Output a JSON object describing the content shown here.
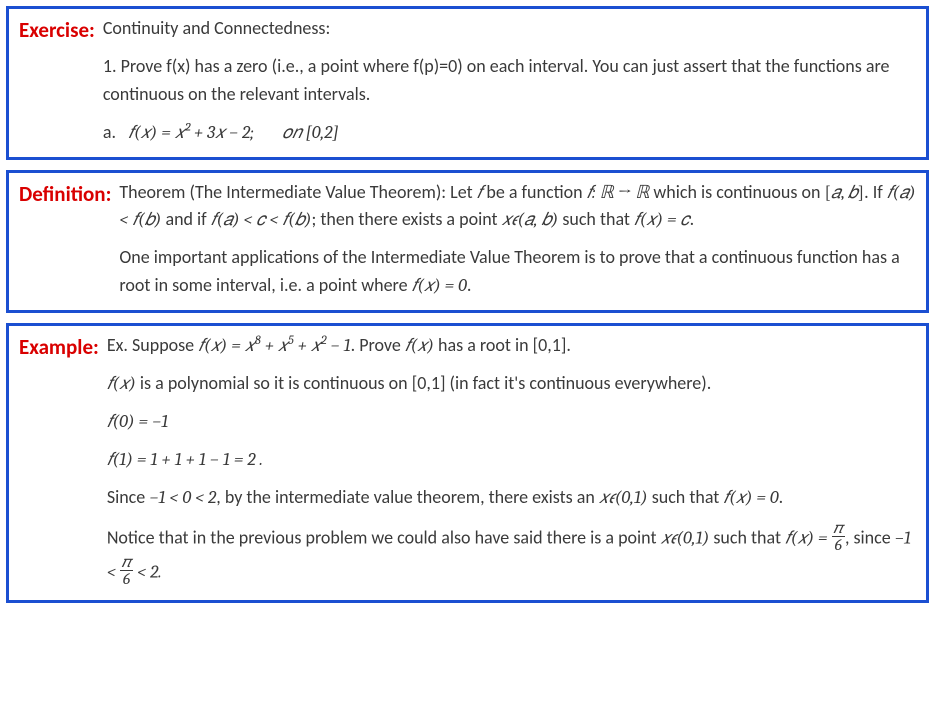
{
  "colors": {
    "border": "#1b4fd1",
    "label": "#d90000",
    "text": "#3a3a3a",
    "background": "#ffffff"
  },
  "exercise": {
    "label": "Exercise:",
    "title": "Continuity and Connectedness:",
    "q1": "1.   Prove f(x) has a zero (i.e., a point where f(p)=0) on each interval.  You can just assert that the functions are continuous on the relevant intervals.",
    "part_a_prefix": "a.",
    "part_a_fn": "𝑓(𝑥) = 𝑥² + 3𝑥 − 2;",
    "part_a_on": "𝑜𝑛  [0,2]"
  },
  "definition": {
    "label": "Definition:",
    "line1a": "Theorem (The Intermediate Value Theorem):  Let ",
    "line1b": " be a function ",
    "line1c": " which is continuous on ",
    "line1d": ".  If ",
    "line1e": " and if ",
    "line1f": ";  then there exists a point ",
    "line1g": " such that ",
    "line1h": ".",
    "line2a": "One important applications of the Intermediate Value Theorem is to prove that a continuous function has a root in some interval, i.e. a point where ",
    "line2b": "."
  },
  "example": {
    "label": "Example:",
    "p1a": "Ex.  Suppose ",
    "p1b": ".  Prove ",
    "p1c": " has a root in [0,1].",
    "p2a": " is a polynomial so it is continuous on [0,1] (in fact it's continuous everywhere).",
    "p5a": "Since ",
    "p5b": ", by the intermediate value theorem, there exists an ",
    "p5c": " such that ",
    "p5d": ".",
    "p6a": "Notice that in the previous problem we could also have said there is a point ",
    "p6b": " such that ",
    "p6c": ", since  "
  }
}
